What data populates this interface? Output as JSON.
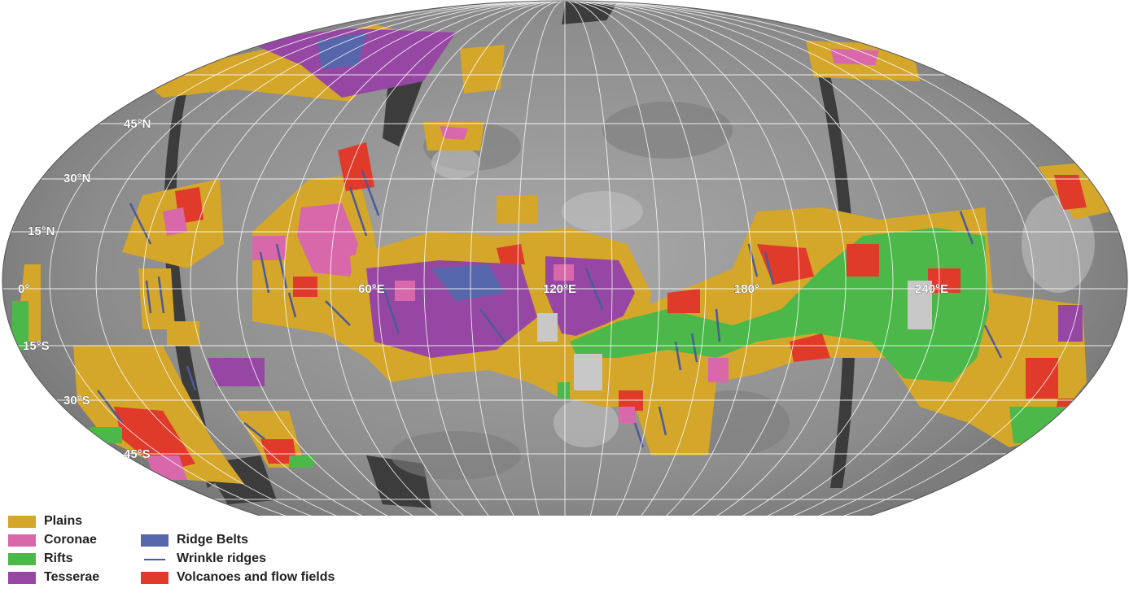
{
  "map": {
    "projection": "Mollweide",
    "latitude_labels": [
      "45°N",
      "30°N",
      "15°N",
      "0°",
      "15°S",
      "30°S",
      "45°S"
    ],
    "longitude_labels": [
      "60°E",
      "120°E",
      "180°",
      "240°E"
    ]
  },
  "legend": {
    "items": [
      {
        "label": "Plains",
        "color": "#d4a62a",
        "kind": "box"
      },
      {
        "label": "Coronae",
        "color": "#d868aa",
        "kind": "box"
      },
      {
        "label": "Rifts",
        "color": "#4cb84a",
        "kind": "box"
      },
      {
        "label": "Tesserae",
        "color": "#9647a3",
        "kind": "box"
      },
      {
        "label": "Ridge Belts",
        "color": "#5566aa",
        "kind": "box"
      },
      {
        "label": "Wrinkle ridges",
        "color": "#4a5a9c",
        "kind": "line"
      },
      {
        "label": "Volcanoes and flow fields",
        "color": "#e03a2a",
        "kind": "box"
      }
    ]
  },
  "colors": {
    "surface": "#8e8e8e",
    "graticule": "#ffffff",
    "data_gap": "#3c3c3c"
  }
}
